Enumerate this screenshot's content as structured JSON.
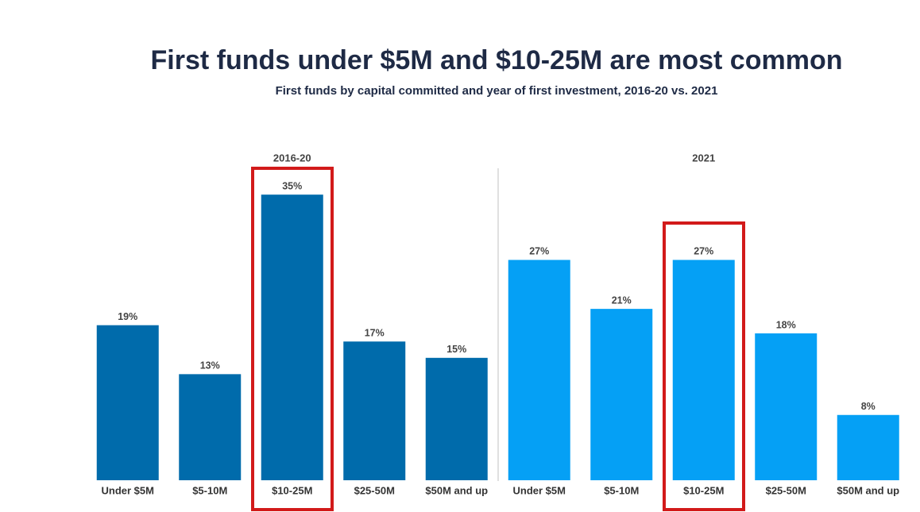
{
  "title": "First funds under $5M and $10-25M are most common",
  "subtitle": "First funds by capital committed and year of first investment, 2016-20 vs. 2021",
  "chart_data": [
    {
      "type": "bar",
      "title": "2016-20",
      "categories": [
        "Under $5M",
        "$5-10M",
        "$10-25M",
        "$25-50M",
        "$50M and up"
      ],
      "values": [
        19,
        13,
        35,
        17,
        15
      ],
      "value_labels": [
        "19%",
        "13%",
        "35%",
        "17%",
        "15%"
      ],
      "color": "#006bab"
    },
    {
      "type": "bar",
      "title": "2021",
      "categories": [
        "Under $5M",
        "$5-10M",
        "$10-25M",
        "$25-50M",
        "$50M and up"
      ],
      "values": [
        27,
        21,
        27,
        18,
        8
      ],
      "value_labels": [
        "27%",
        "21%",
        "27%",
        "18%",
        "8%"
      ],
      "color": "#05a0f5"
    }
  ]
}
